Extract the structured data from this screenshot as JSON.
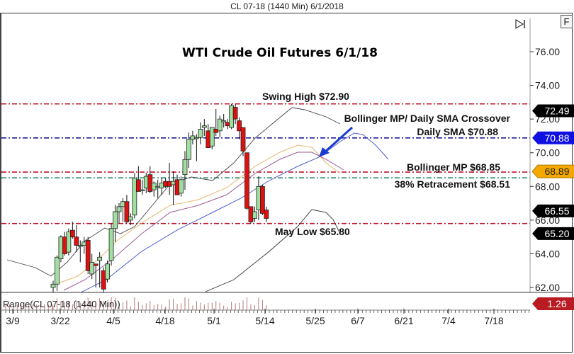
{
  "window": {
    "title": "CL 07-18 (1440 Min)  6/1/2018"
  },
  "toolbar": {
    "f_button": "F",
    "scroll_end_icon": "skip-to-end-icon"
  },
  "chart_data": {
    "type": "candlestick",
    "title": "WTI Crude Oil Futures 6/1/18",
    "symbol": "CL 07-18 (1440 Min)",
    "y_ticks": [
      "76.00",
      "74.00",
      "72.00",
      "70.00",
      "68.00",
      "66.00",
      "64.00",
      "62.00"
    ],
    "y_range": [
      61.6,
      77.5
    ],
    "x_ticks": [
      "3/9",
      "3/22",
      "4/5",
      "4/18",
      "5/1",
      "5/14",
      "5/25",
      "6/7",
      "6/21",
      "7/4",
      "7/18"
    ],
    "grid": false,
    "horizontal_levels": [
      {
        "label": "Swing High $72.90",
        "value": 72.9,
        "color": "#c0142a"
      },
      {
        "label": "Daily SMA $70.88",
        "value": 70.88,
        "color": "#1a1aa0"
      },
      {
        "label": "Bollinger MP $68.85",
        "value": 68.85,
        "color": "#c0142a"
      },
      {
        "label": "38% Retracement $68.51",
        "value": 68.51,
        "color": "#2e8b6e"
      },
      {
        "label": "May Low $65.80",
        "value": 65.8,
        "color": "#c0142a"
      }
    ],
    "annotations": [
      {
        "text": "Bollinger MP/ Daily SMA Crossover",
        "type": "arrow-callout"
      }
    ],
    "price_tags": [
      {
        "value": "72.49",
        "bg": "#000000",
        "fg": "#ffffff"
      },
      {
        "value": "70.88",
        "bg": "#1010e0",
        "fg": "#ffffff"
      },
      {
        "value": "68.89",
        "bg": "#f5a800",
        "fg": "#222222"
      },
      {
        "value": "66.55",
        "bg": "#000000",
        "fg": "#ffffff"
      },
      {
        "value": "65.20",
        "bg": "#000000",
        "fg": "#ffffff"
      },
      {
        "value": "1.26",
        "bg": "#b81c22",
        "fg": "#ffffff"
      }
    ],
    "indicator_panel": {
      "label": "Range(CL 07-18 (1440 Min))",
      "last_value": "1.26"
    },
    "candles": [
      {
        "date": "3/20",
        "o": 62.0,
        "h": 62.4,
        "l": 61.6,
        "c": 62.2
      },
      {
        "date": "3/21",
        "o": 62.2,
        "h": 63.9,
        "l": 61.8,
        "c": 63.8
      },
      {
        "date": "3/22",
        "o": 63.7,
        "h": 65.1,
        "l": 63.5,
        "c": 65.0
      },
      {
        "date": "3/23",
        "o": 65.0,
        "h": 65.3,
        "l": 63.9,
        "c": 64.0
      },
      {
        "date": "3/26",
        "o": 64.1,
        "h": 65.5,
        "l": 63.9,
        "c": 65.3
      },
      {
        "date": "3/27",
        "o": 65.4,
        "h": 65.9,
        "l": 64.9,
        "c": 65.0
      },
      {
        "date": "3/28",
        "o": 65.0,
        "h": 65.7,
        "l": 64.1,
        "c": 64.5
      },
      {
        "date": "3/29",
        "o": 64.5,
        "h": 64.8,
        "l": 63.5,
        "c": 64.5
      },
      {
        "date": "4/2",
        "o": 64.5,
        "h": 65.0,
        "l": 64.0,
        "c": 64.7
      },
      {
        "date": "4/3",
        "o": 64.8,
        "h": 65.0,
        "l": 62.8,
        "c": 63.0
      },
      {
        "date": "4/4",
        "o": 62.8,
        "h": 64.0,
        "l": 62.5,
        "c": 63.5
      },
      {
        "date": "4/5",
        "o": 63.4,
        "h": 63.4,
        "l": 62.0,
        "c": 63.3
      },
      {
        "date": "4/6",
        "o": 63.6,
        "h": 64.1,
        "l": 62.0,
        "c": 63.8
      },
      {
        "date": "4/9",
        "o": 63.0,
        "h": 63.2,
        "l": 61.6,
        "c": 61.9
      },
      {
        "date": "4/10",
        "o": 62.5,
        "h": 63.6,
        "l": 62.3,
        "c": 63.4
      },
      {
        "date": "4/11",
        "o": 63.6,
        "h": 65.8,
        "l": 63.3,
        "c": 65.5
      },
      {
        "date": "4/12",
        "o": 65.5,
        "h": 66.9,
        "l": 64.7,
        "c": 66.5
      },
      {
        "date": "4/13",
        "o": 66.5,
        "h": 67.0,
        "l": 65.8,
        "c": 66.8
      },
      {
        "date": "4/16",
        "o": 66.8,
        "h": 67.3,
        "l": 65.9,
        "c": 67.1
      },
      {
        "date": "4/17",
        "o": 67.1,
        "h": 67.5,
        "l": 65.8,
        "c": 65.9
      },
      {
        "date": "4/18",
        "o": 66.0,
        "h": 66.4,
        "l": 65.7,
        "c": 66.2
      },
      {
        "date": "4/19",
        "o": 66.3,
        "h": 68.8,
        "l": 66.1,
        "c": 68.5
      },
      {
        "date": "4/20",
        "o": 68.4,
        "h": 69.2,
        "l": 67.7,
        "c": 67.7
      },
      {
        "date": "4/23",
        "o": 67.8,
        "h": 68.4,
        "l": 67.5,
        "c": 67.8
      },
      {
        "date": "4/24",
        "o": 67.9,
        "h": 68.8,
        "l": 67.6,
        "c": 68.6
      },
      {
        "date": "4/25",
        "o": 68.7,
        "h": 69.2,
        "l": 67.6,
        "c": 67.7
      },
      {
        "date": "4/26",
        "o": 67.8,
        "h": 68.3,
        "l": 67.4,
        "c": 68.2
      },
      {
        "date": "4/27",
        "o": 68.0,
        "h": 68.4,
        "l": 67.3,
        "c": 68.0
      },
      {
        "date": "4/30",
        "o": 67.9,
        "h": 68.5,
        "l": 67.5,
        "c": 68.2
      },
      {
        "date": "5/1",
        "o": 68.3,
        "h": 68.5,
        "l": 67.9,
        "c": 68.0
      },
      {
        "date": "5/2",
        "o": 68.3,
        "h": 69.4,
        "l": 67.5,
        "c": 68.0
      },
      {
        "date": "5/3",
        "o": 68.1,
        "h": 68.9,
        "l": 66.9,
        "c": 68.3
      },
      {
        "date": "5/4",
        "o": 68.4,
        "h": 68.7,
        "l": 67.6,
        "c": 67.5
      },
      {
        "date": "5/7",
        "o": 67.6,
        "h": 68.6,
        "l": 67.4,
        "c": 68.4
      },
      {
        "date": "5/8",
        "o": 68.7,
        "h": 70.1,
        "l": 67.8,
        "c": 69.6
      },
      {
        "date": "5/9",
        "o": 69.6,
        "h": 71.2,
        "l": 69.1,
        "c": 70.8
      },
      {
        "date": "5/10",
        "o": 70.8,
        "h": 71.3,
        "l": 70.5,
        "c": 71.0
      },
      {
        "date": "5/11",
        "o": 70.9,
        "h": 71.1,
        "l": 69.5,
        "c": 70.9
      },
      {
        "date": "5/14",
        "o": 70.9,
        "h": 71.8,
        "l": 70.5,
        "c": 71.4
      },
      {
        "date": "5/15",
        "o": 71.5,
        "h": 72.0,
        "l": 71.0,
        "c": 71.6
      },
      {
        "date": "5/16",
        "o": 71.3,
        "h": 71.7,
        "l": 70.4,
        "c": 70.3
      },
      {
        "date": "5/17",
        "o": 70.4,
        "h": 71.5,
        "l": 70.2,
        "c": 71.5
      },
      {
        "date": "5/18",
        "o": 71.4,
        "h": 72.6,
        "l": 71.0,
        "c": 71.2
      },
      {
        "date": "5/21",
        "o": 71.3,
        "h": 72.2,
        "l": 70.9,
        "c": 72.0
      },
      {
        "date": "5/22",
        "o": 71.9,
        "h": 72.3,
        "l": 71.5,
        "c": 71.9
      },
      {
        "date": "5/23",
        "o": 71.8,
        "h": 72.0,
        "l": 71.4,
        "c": 71.6
      },
      {
        "date": "5/24",
        "o": 71.5,
        "h": 72.9,
        "l": 71.4,
        "c": 72.8
      },
      {
        "date": "5/25",
        "o": 72.7,
        "h": 72.9,
        "l": 71.7,
        "c": 72.0
      },
      {
        "date": "5/28",
        "o": 71.9,
        "h": 72.1,
        "l": 70.8,
        "c": 71.3
      },
      {
        "date": "5/29",
        "o": 71.5,
        "h": 71.5,
        "l": 69.8,
        "c": 70.1
      },
      {
        "date": "5/30",
        "o": 70.0,
        "h": 70.0,
        "l": 66.6,
        "c": 66.7
      },
      {
        "date": "5/31",
        "o": 66.8,
        "h": 66.8,
        "l": 65.8,
        "c": 65.9
      },
      {
        "date": "6/1",
        "o": 66.1,
        "h": 66.8,
        "l": 65.9,
        "c": 66.5
      },
      {
        "date": "6/4",
        "o": 66.6,
        "h": 68.6,
        "l": 66.0,
        "c": 68.0
      },
      {
        "date": "6/5",
        "o": 68.0,
        "h": 68.1,
        "l": 66.3,
        "c": 66.4
      },
      {
        "date": "6/6",
        "o": 66.6,
        "h": 66.8,
        "l": 65.9,
        "c": 66.1
      }
    ]
  }
}
